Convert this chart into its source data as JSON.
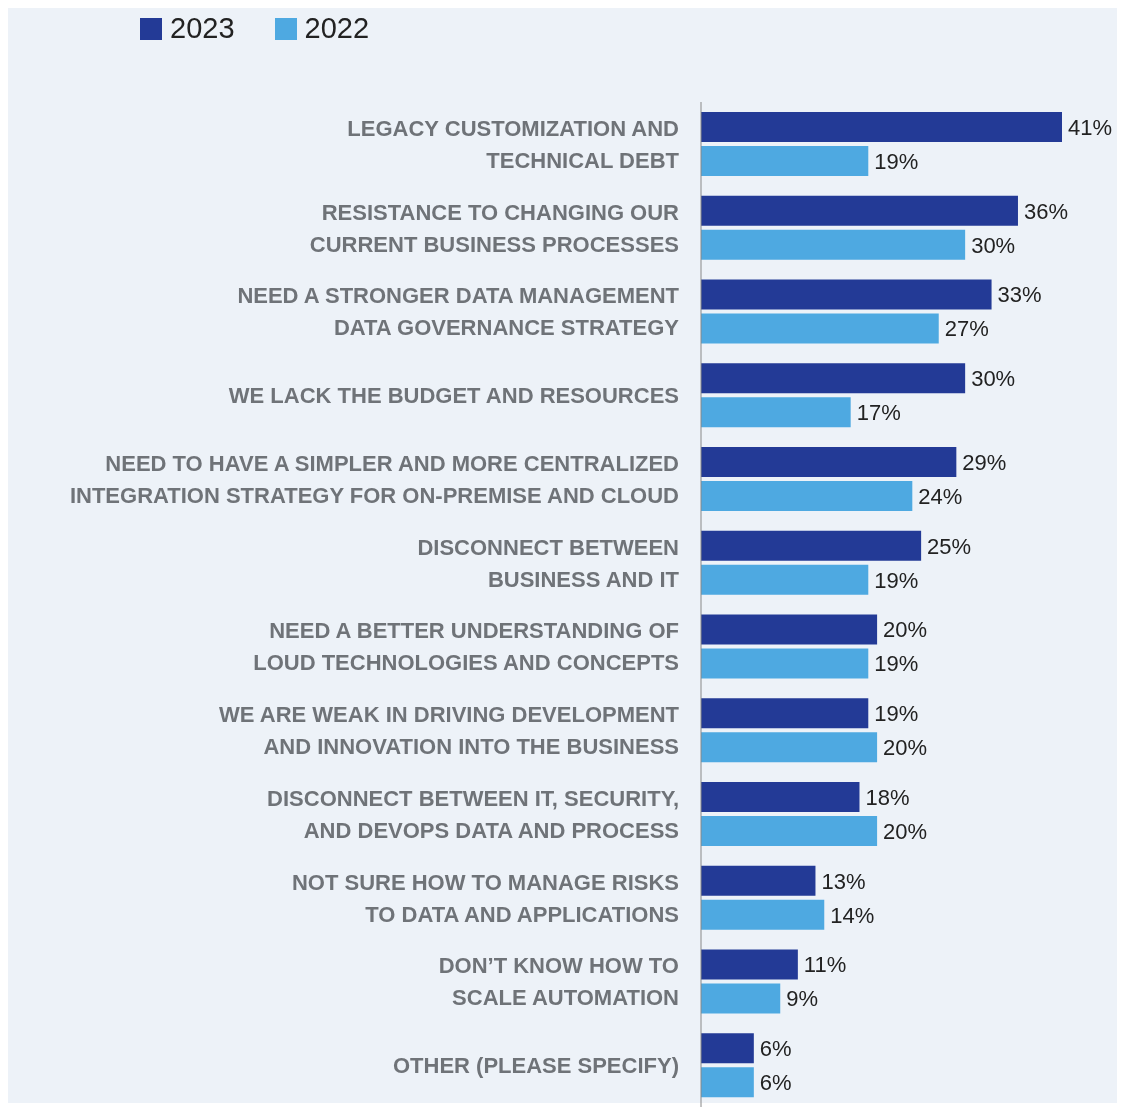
{
  "chart_data": {
    "type": "bar",
    "orientation": "horizontal",
    "legend": "top left",
    "categories": [
      "LEGACY CUSTOMIZATION AND\nTECHNICAL DEBT",
      "RESISTANCE TO CHANGING OUR\nCURRENT BUSINESS PROCESSES",
      "NEED A STRONGER DATA MANAGEMENT\nDATA GOVERNANCE STRATEGY",
      "WE LACK THE BUDGET AND RESOURCES",
      "NEED TO HAVE A SIMPLER AND MORE CENTRALIZED\nINTEGRATION STRATEGY FOR ON-PREMISE AND CLOUD",
      "DISCONNECT BETWEEN\nBUSINESS AND IT",
      "NEED A BETTER UNDERSTANDING OF\nLOUD TECHNOLOGIES AND CONCEPTS",
      "WE ARE WEAK IN DRIVING DEVELOPMENT\nAND INNOVATION INTO THE BUSINESS",
      "DISCONNECT BETWEEN IT, SECURITY,\nAND DEVOPS DATA AND PROCESS",
      "NOT SURE HOW TO MANAGE RISKS\nTO DATA AND APPLICATIONS",
      "DON’T KNOW HOW TO\nSCALE AUTOMATION",
      "OTHER (PLEASE SPECIFY)"
    ],
    "series": [
      {
        "name": "2023",
        "color": "#233a96",
        "values": [
          41,
          36,
          33,
          30,
          29,
          25,
          20,
          19,
          18,
          13,
          11,
          6
        ],
        "value_labels": [
          "41%",
          "36%",
          "33%",
          "30%",
          "29%",
          "25%",
          "20%",
          "19%",
          "18%",
          "13%",
          "11%",
          "6%"
        ]
      },
      {
        "name": "2022",
        "color": "#4ea9e1",
        "values": [
          19,
          30,
          27,
          17,
          24,
          19,
          19,
          20,
          20,
          14,
          9,
          6
        ],
        "value_labels": [
          "19%",
          "30%",
          "27%",
          "17%",
          "24%",
          "19%",
          "19%",
          "20%",
          "20%",
          "14%",
          "9%",
          "6%"
        ]
      }
    ]
  }
}
